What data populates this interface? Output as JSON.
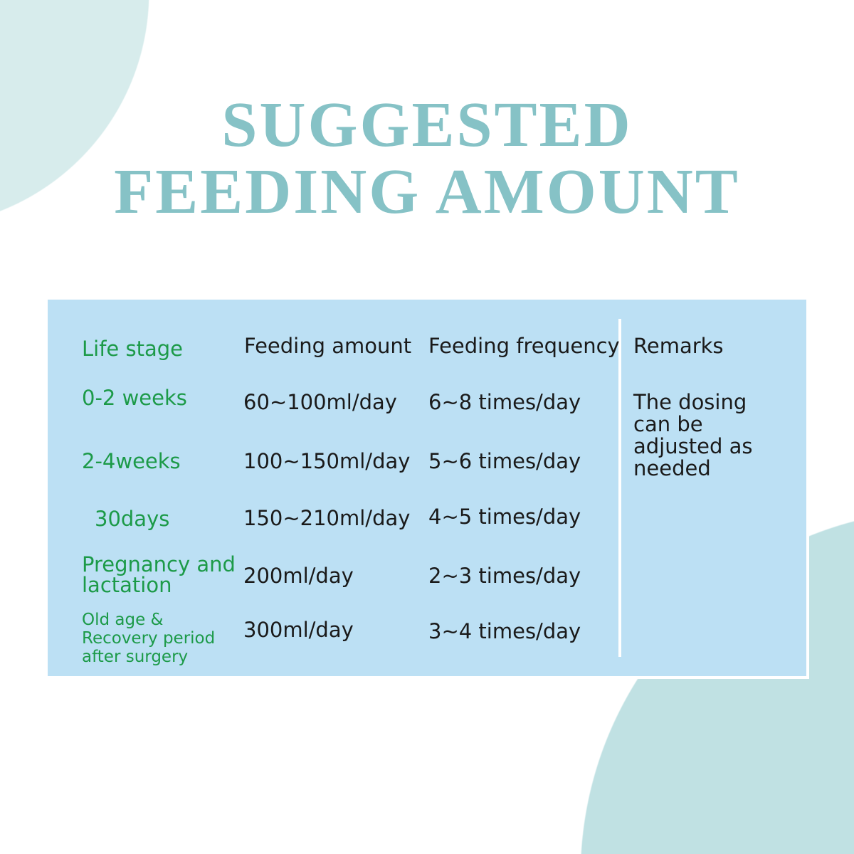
{
  "title": {
    "line1": "SUGGESTED",
    "line2": "FEEDING AMOUNT"
  },
  "colors": {
    "title": "#86c2c6",
    "panel": "#bce0f4",
    "stage_text": "#1c9a48",
    "body_text": "#1a1a1a",
    "circle_top_left": "#d7ecec",
    "circle_bottom_right": "#c0e1e3"
  },
  "table": {
    "headers": {
      "stage": "Life stage",
      "amount": "Feeding amount",
      "frequency": "Feeding frequency",
      "remarks": "Remarks"
    },
    "rows": [
      {
        "stage": "0-2 weeks",
        "amount": "60~100ml/day",
        "frequency": "6~8 times/day"
      },
      {
        "stage": "2-4weeks",
        "amount": "100~150ml/day",
        "frequency": "5~6 times/day"
      },
      {
        "stage": "30days",
        "amount": "150~210ml/day",
        "frequency": "4~5 times/day"
      },
      {
        "stage": "Pregnancy and lactation",
        "amount": "200ml/day",
        "frequency": "2~3 times/day"
      },
      {
        "stage": "Old age & Recovery period after surgery",
        "amount": "300ml/day",
        "frequency": "3~4 times/day"
      }
    ],
    "remarks": "The dosing can be adjusted as needed"
  }
}
